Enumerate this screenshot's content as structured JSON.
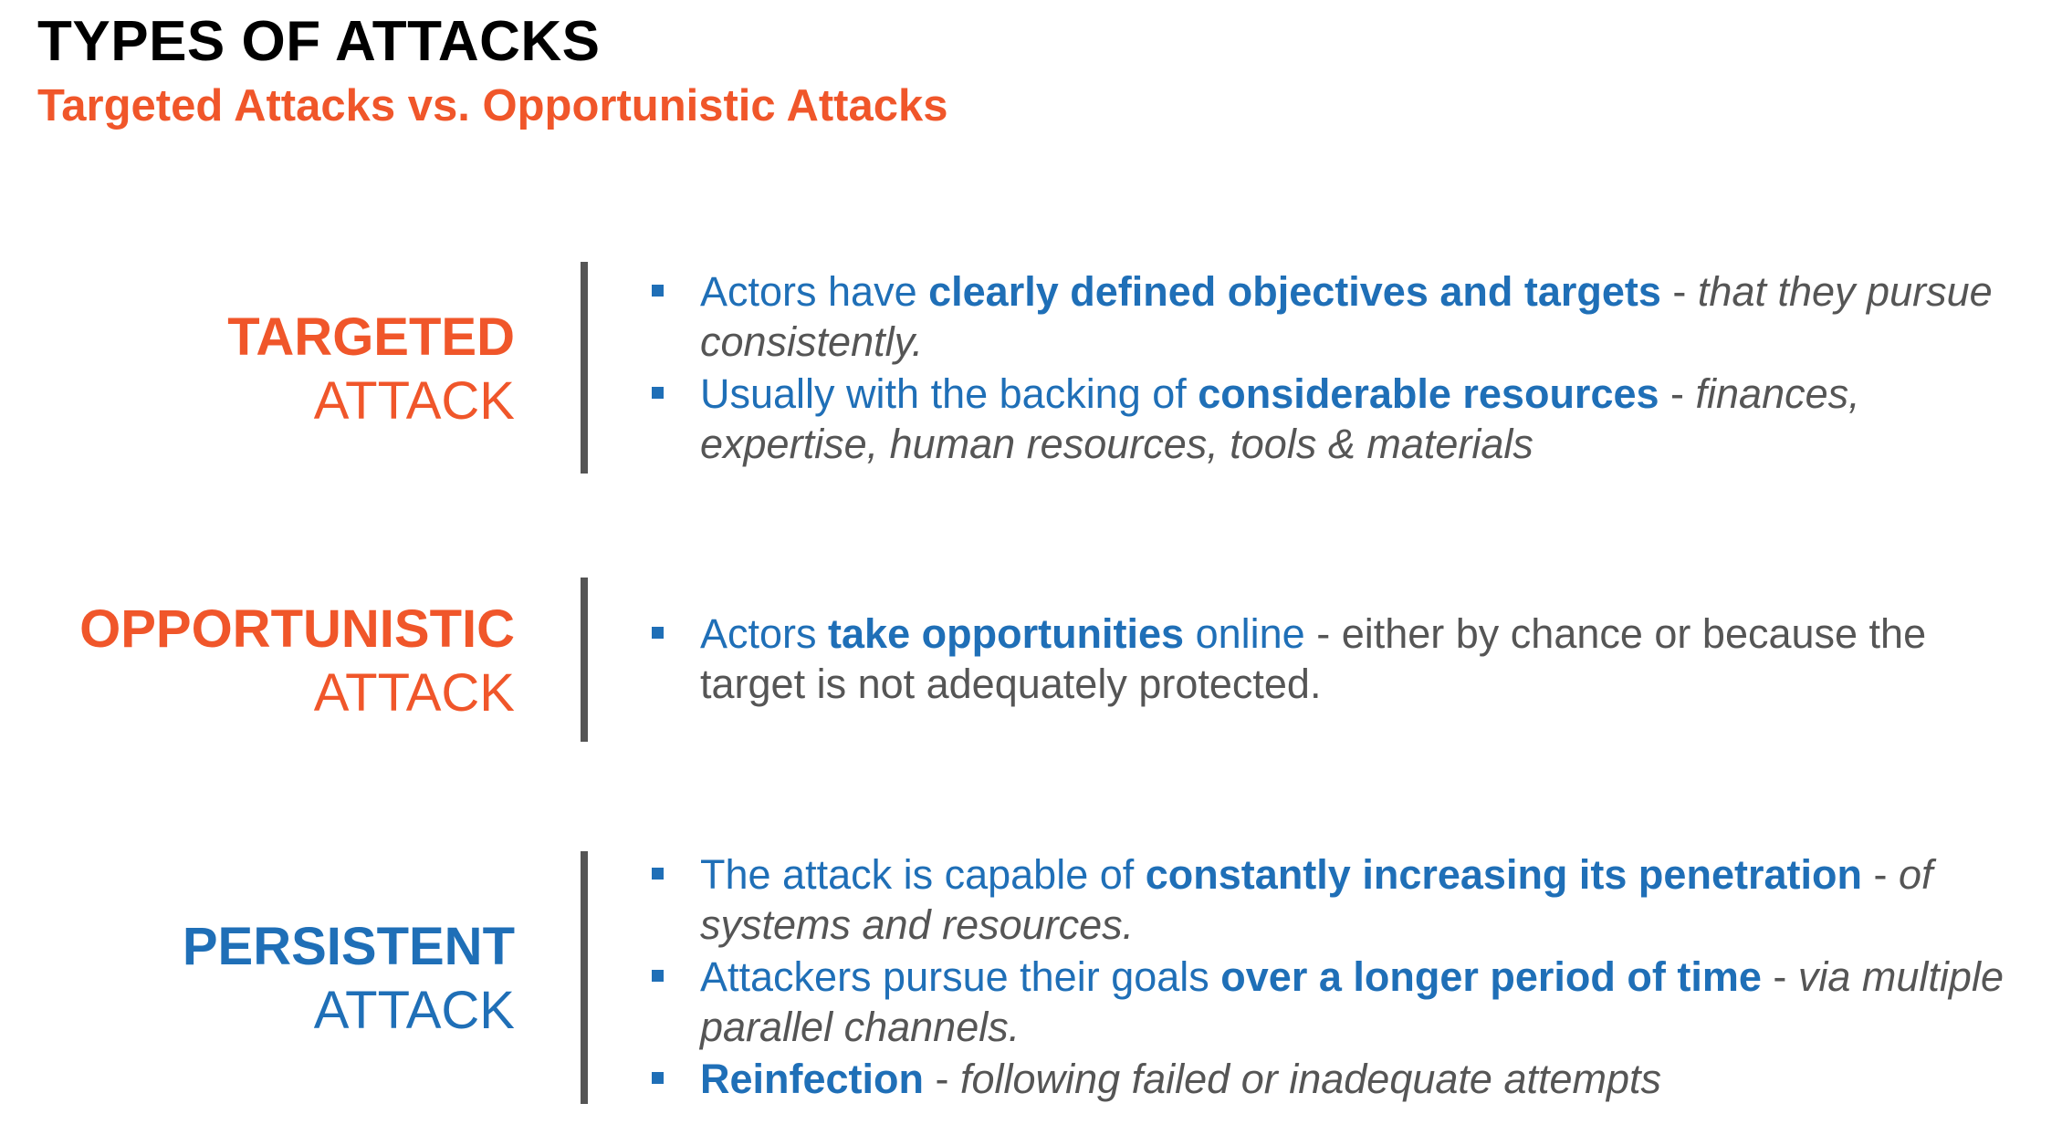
{
  "header": {
    "title": "TYPES OF ATTACKS",
    "subtitle": "Targeted Attacks vs. Opportunistic Attacks"
  },
  "colors": {
    "accent_orange": "#f0562a",
    "accent_blue": "#1f6fb7",
    "text_gray": "#555555",
    "divider_gray": "#555555"
  },
  "sections": [
    {
      "label_strong": "TARGETED",
      "label_light": "ATTACK",
      "label_color": "#f0562a",
      "bullets": [
        {
          "p1": "Actors have ",
          "p2": "clearly defined objectives and targets",
          "p3": " - ",
          "p4": "that they pursue consistently."
        },
        {
          "p1": "Usually with the backing of ",
          "p2": "considerable resources",
          "p3": " - ",
          "p4": "finances, expertise, human resources, tools & materials"
        }
      ]
    },
    {
      "label_strong": "OPPORTUNISTIC",
      "label_light": "ATTACK",
      "label_color": "#f0562a",
      "bullets": [
        {
          "p1": "Actors ",
          "p2": "take opportunities",
          "p3": " online",
          "p4": " - either by chance or because the target is not adequately protected."
        }
      ]
    },
    {
      "label_strong": "PERSISTENT",
      "label_light": "ATTACK",
      "label_color": "#1f6fb7",
      "bullets": [
        {
          "p1": "The attack is capable of ",
          "p2": "constantly increasing its penetration",
          "p3": " - ",
          "p4": "of systems and resources."
        },
        {
          "p1": "Attackers pursue their goals ",
          "p2": "over a longer period of time",
          "p3": " - ",
          "p4": "via multiple parallel channels."
        },
        {
          "p1": "",
          "p2": "Reinfection",
          "p3": " - ",
          "p4": "following failed or inadequate attempts"
        }
      ]
    }
  ]
}
